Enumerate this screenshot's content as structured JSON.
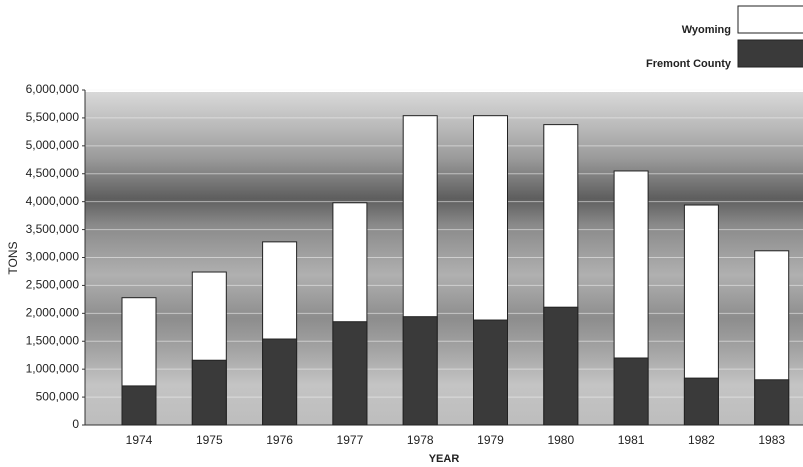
{
  "chart_data": {
    "type": "bar",
    "mode": "overlap",
    "x_label": "YEAR",
    "y_label": "TONS",
    "categories": [
      "1974",
      "1975",
      "1976",
      "1977",
      "1978",
      "1979",
      "1980",
      "1981",
      "1982",
      "1983"
    ],
    "series": [
      {
        "name": "Wyoming",
        "color": "#ffffff",
        "values": [
          2280000,
          2740000,
          3280000,
          3980000,
          5540000,
          5540000,
          5380000,
          4550000,
          3940000,
          3120000
        ]
      },
      {
        "name": "Fremont County",
        "color": "#3a3a3a",
        "values": [
          700000,
          1160000,
          1540000,
          1850000,
          1940000,
          1880000,
          2110000,
          1200000,
          840000,
          810000
        ]
      }
    ],
    "ylim": [
      0,
      6000000
    ],
    "yticks": [
      0,
      {
        "value": 500000,
        "label": "500,000"
      },
      {
        "value": 1000000,
        "label": "1,000,000"
      },
      {
        "value": 1500000,
        "label": "1,500,000"
      },
      {
        "value": 2000000,
        "label": "2,000,000"
      },
      {
        "value": 2500000,
        "label": "2,500,000"
      },
      {
        "value": 3000000,
        "label": "3,000,000"
      },
      {
        "value": 3500000,
        "label": "3,500,000"
      },
      {
        "value": 4000000,
        "label": "4,000,000"
      },
      {
        "value": 4500000,
        "label": "4,500,000"
      },
      {
        "value": 5000000,
        "label": "5,000,000"
      },
      {
        "value": 5500000,
        "label": "5,500,000"
      },
      {
        "value": 6000000,
        "label": "6,000,000"
      }
    ],
    "grid": true,
    "legend": "upper right"
  }
}
